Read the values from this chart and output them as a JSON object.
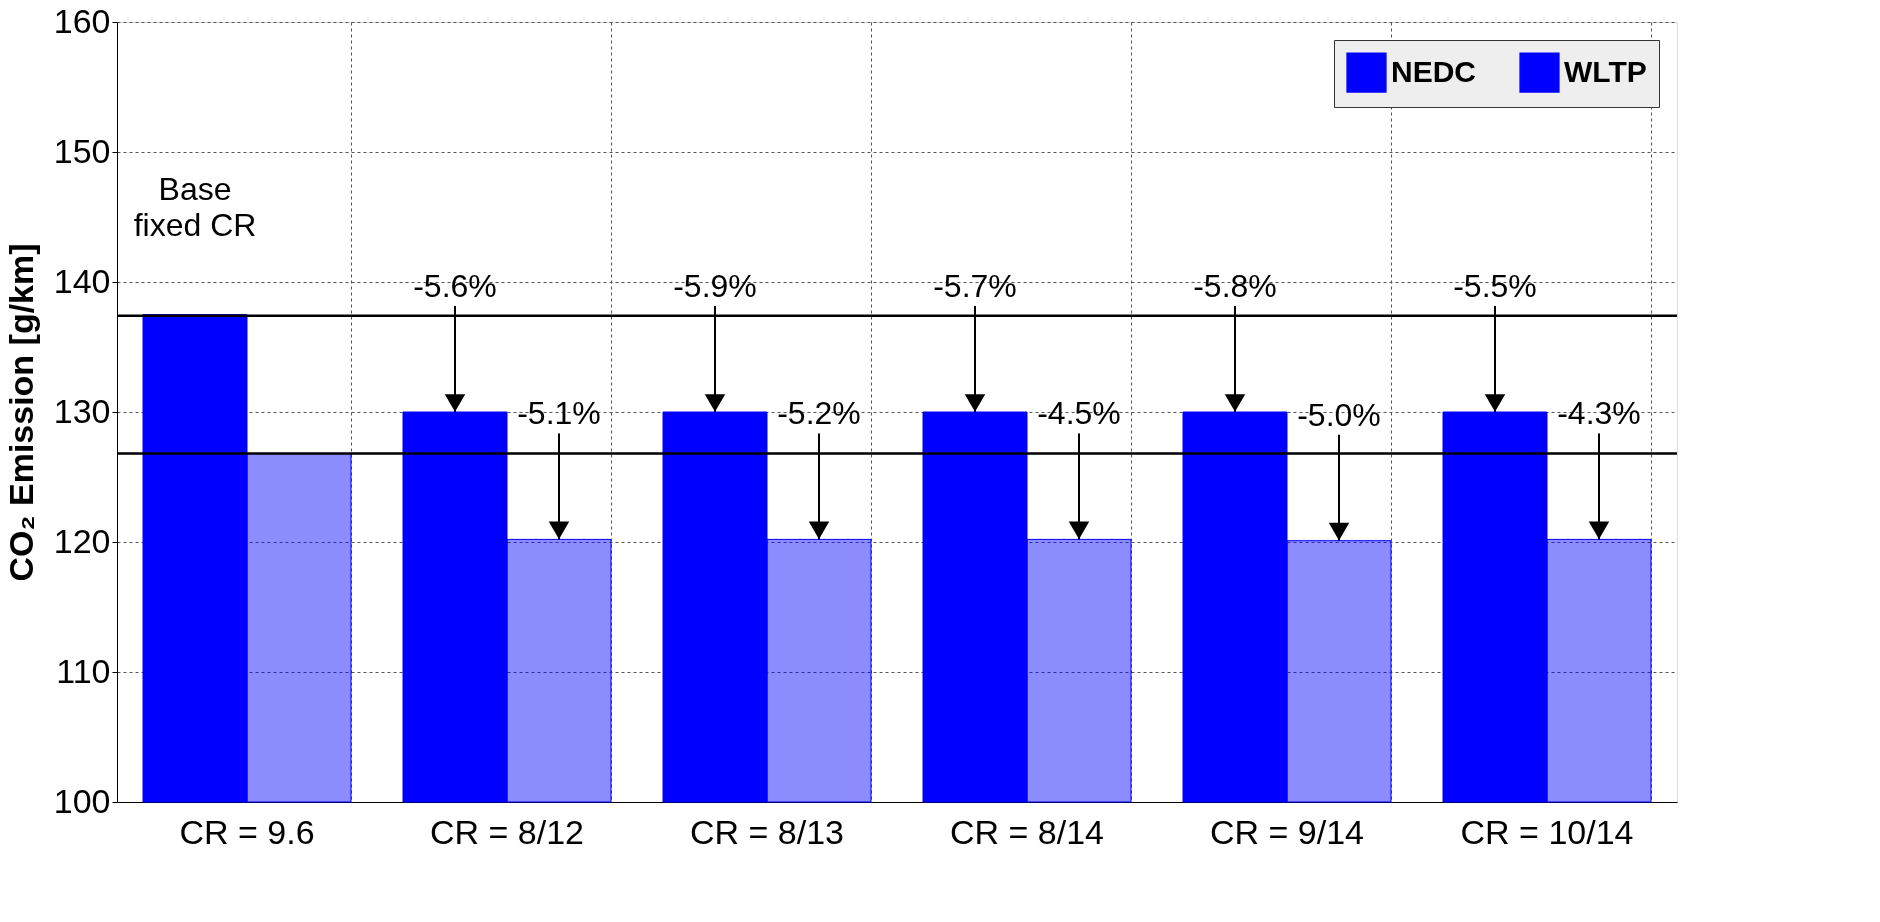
{
  "chart_data": {
    "type": "bar",
    "ylabel": "CO₂ Emission [g/km]",
    "categories": [
      "CR = 9.6",
      "CR = 8/12",
      "CR = 8/13",
      "CR = 8/14",
      "CR = 9/14",
      "CR = 10/14"
    ],
    "series": [
      {
        "name": "NEDC",
        "color": "#0000ff",
        "values": [
          137.5,
          130.0,
          130.0,
          130.0,
          130.0,
          130.0
        ]
      },
      {
        "name": "WLTP",
        "color": "#0000ff",
        "values": [
          126.8,
          120.2,
          120.2,
          120.2,
          120.1,
          120.2
        ]
      }
    ],
    "annotations": [
      "Base\nfixed CR",
      {
        "text": "-5.6%",
        "y": 130.0
      },
      {
        "text": "-5.9%",
        "y": 130.0
      },
      {
        "text": "-5.7%",
        "y": 130.0
      },
      {
        "text": "-5.8%",
        "y": 130.0
      },
      {
        "text": "-5.5%",
        "y": 130.0
      },
      {
        "text": "-5.1%",
        "y": 120.2
      },
      {
        "text": "-5.2%",
        "y": 120.2
      },
      {
        "text": "-4.5%",
        "y": 120.2
      },
      {
        "text": "-5.0%",
        "y": 120.1
      },
      {
        "text": "-4.3%",
        "y": 120.2
      }
    ],
    "ylim": [
      100,
      160
    ],
    "yticks": [
      100,
      110,
      120,
      130,
      140,
      150,
      160
    ],
    "ref_lines": [
      {
        "axis": "y",
        "value": 137.4,
        "color": "#000000"
      },
      {
        "axis": "y",
        "value": 126.8,
        "color": "#000000"
      }
    ],
    "grid": true,
    "legend": "top right"
  }
}
